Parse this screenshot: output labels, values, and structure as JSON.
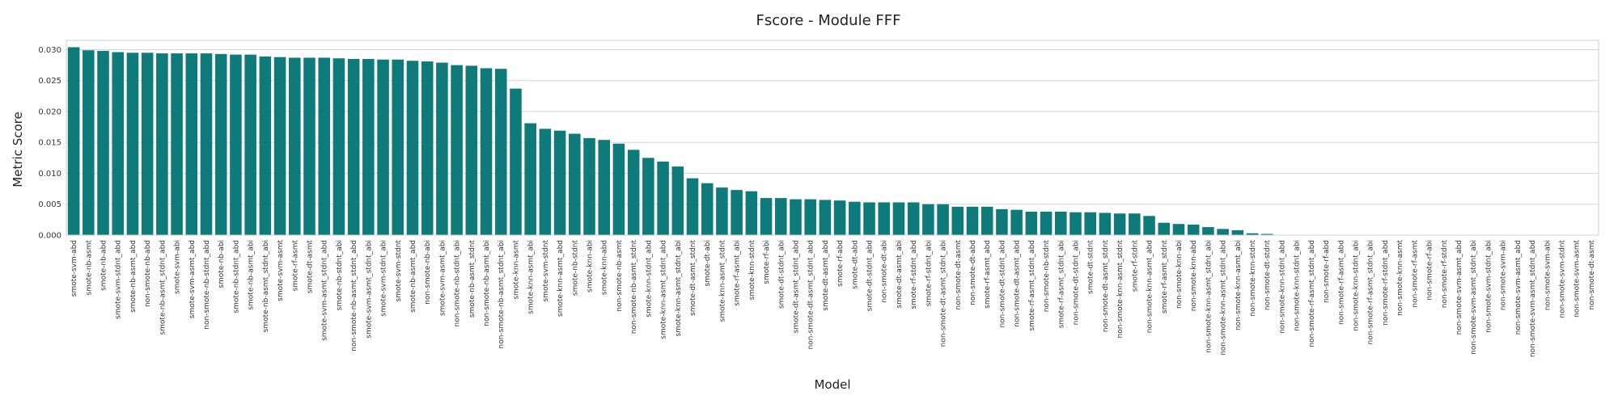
{
  "chart_data": {
    "type": "bar",
    "title": "Fscore - Module FFF",
    "xlabel": "Model",
    "ylabel": "Metric Score",
    "ylim": [
      0,
      0.0315
    ],
    "yticks": [
      "0.000",
      "0.005",
      "0.010",
      "0.015",
      "0.020",
      "0.025",
      "0.030"
    ],
    "ytick_values": [
      0,
      0.005,
      0.01,
      0.015,
      0.02,
      0.025,
      0.03
    ],
    "grid": true,
    "bar_color": "#0f7a7a",
    "categories": [
      "smote-svm-abd",
      "smote-nb-asmt",
      "smote-nb-abd",
      "smote-svm-stdnt_abd",
      "smote-nb-asmt_abd",
      "non-smote-nb-abd",
      "smote-nb-asmt_stdnt_abd",
      "smote-svm-abi",
      "smote-svm-asmt_abd",
      "non-smote-nb-stdnt_abd",
      "smote-nb-abi",
      "smote-nb-stdnt_abd",
      "smote-nb-asmt_abi",
      "smote-nb-asmt_stdnt_abi",
      "smote-svm-asmt",
      "smote-rf-asmt",
      "smote-dt-asmt",
      "smote-svm-asmt_stdnt_abd",
      "smote-nb-stdnt_abi",
      "non-smote-nb-asmt_stdnt_abd",
      "smote-svm-asmt_stdnt_abi",
      "smote-svm-stdnt_abi",
      "smote-svm-stdnt",
      "smote-nb-asmt_abd",
      "non-smote-nb-abi",
      "smote-svm-asmt_abi",
      "non-smote-nb-stdnt_abi",
      "smote-nb-asmt_stdnt",
      "non-smote-nb-asmt_abi",
      "non-smote-nb-asmt_stdnt_abi",
      "smote-knn-asmt",
      "smote-knn-asmt_abi",
      "smote-svm-stdnt",
      "smote-knn-asmt_abd",
      "smote-nb-stdnt",
      "smote-knn-abi",
      "smote-knn-abd",
      "non-smote-nb-asmt",
      "non-smote-nb-asmt_stdnt",
      "smote-knn-stdnt_abd",
      "smote-knn-asmt_stdnt_abd",
      "smote-knn-asmt_stdnt_abi",
      "smote-dt-asmt_stdnt",
      "smote-dt-abi",
      "smote-knn-asmt_stdnt",
      "smote-rf-asmt_abi",
      "smote-knn-stdnt",
      "smote-rf-abi",
      "smote-dt-stdnt_abi",
      "smote-dt-asmt_stdnt_abd",
      "non-smote-dt-asmt_stdnt_abd",
      "smote-dt-asmt_abd",
      "smote-rf-abd",
      "smote-dt-abd",
      "smote-dt-stdnt_abd",
      "non-smote-dt-abi",
      "smote-dt-asmt_abi",
      "smote-rf-stdnt_abd",
      "smote-rf-stdnt_abi",
      "non-smote-dt-asmt_stdnt_abi",
      "non-smote-dt-asmt",
      "non-smote-dt-abd",
      "smote-rf-asmt_abd",
      "non-smote-dt-stdnt_abd",
      "non-smote-dt-asmt_abd",
      "smote-rf-asmt_stdnt_abd",
      "non-smote-nb-stdnt",
      "smote-rf-asmt_stdnt_abi",
      "non-smote-dt-stdnt_abi",
      "smote-dt-stdnt",
      "non-smote-dt-asmt_stdnt",
      "non-smote-knn-asmt_stdnt",
      "smote-rf-stdnt",
      "non-smote-knn-asmt_abd",
      "smote-rf-asmt_stdnt",
      "non-smote-knn-abi",
      "non-smote-knn-abd",
      "non-smote-knn-asmt_stdnt_abi",
      "non-smote-knn-asmt_stdnt_abd",
      "non-smote-knn-asmt_abi",
      "non-smote-knn-stdnt",
      "non-smote-dt-stdnt",
      "non-smote-knn-stdnt_abd",
      "non-smote-knn-stdnt_abi",
      "non-smote-rf-asmt_stdnt_abd",
      "non-smote-rf-abd",
      "non-smote-rf-asmt_abd",
      "non-smote-knn-stdnt_abi",
      "non-smote-rf-asmt_stdnt_abi",
      "non-smote-rf-stdnt_abd",
      "non-smote-knn-asmt",
      "non-smote-rf-asmt",
      "non-smote-rf-abi",
      "non-smote-rf-stdnt",
      "non-smote-svm-asmt_abd",
      "non-smote-svm-asmt_stdnt_abi",
      "non-smote-svm-stdnt_abi",
      "non-smote-svm-abi",
      "non-smote-svm-asmt_abd",
      "non-smote-svm-asmt_stdnt_abd",
      "non-smote-svm-abi",
      "non-smote-svm-stdnt",
      "non-smote-svm-asmt",
      "non-smote-dt-asmt"
    ],
    "values": [
      0.0304,
      0.0299,
      0.0298,
      0.0296,
      0.0295,
      0.0295,
      0.0294,
      0.0294,
      0.0294,
      0.0294,
      0.0293,
      0.0292,
      0.0292,
      0.0289,
      0.0288,
      0.0287,
      0.0287,
      0.0287,
      0.0286,
      0.0285,
      0.0285,
      0.0284,
      0.0284,
      0.0282,
      0.0281,
      0.0279,
      0.0275,
      0.0274,
      0.027,
      0.0269,
      0.0237,
      0.0181,
      0.0172,
      0.0169,
      0.0164,
      0.0157,
      0.0154,
      0.0148,
      0.0138,
      0.0125,
      0.0119,
      0.0111,
      0.0092,
      0.0084,
      0.0077,
      0.0073,
      0.0071,
      0.006,
      0.006,
      0.0058,
      0.0058,
      0.0057,
      0.0056,
      0.0054,
      0.0053,
      0.0053,
      0.0053,
      0.0053,
      0.005,
      0.005,
      0.0046,
      0.0046,
      0.0046,
      0.0042,
      0.0041,
      0.0038,
      0.0038,
      0.0038,
      0.0037,
      0.0037,
      0.0036,
      0.0035,
      0.0035,
      0.0031,
      0.002,
      0.0018,
      0.0017,
      0.0013,
      0.001,
      0.0008,
      0.0003,
      0.0002,
      0,
      0,
      0,
      0,
      0,
      0,
      0,
      0,
      0,
      0,
      0,
      0,
      0,
      0,
      0,
      0,
      0,
      0,
      0,
      0,
      0,
      0
    ]
  }
}
